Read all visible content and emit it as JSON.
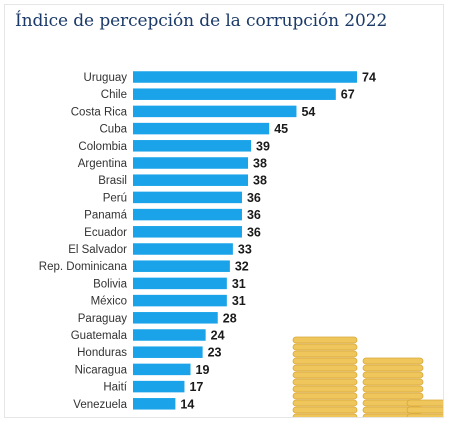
{
  "colors": {
    "bar": "#1aa3e8",
    "title": "#1b3a68",
    "coin": "#eec65c",
    "coin_edge": "#d9a83a"
  },
  "coins_icon": "coin-stacks-illustration",
  "chart_data": {
    "type": "bar",
    "orientation": "horizontal",
    "title": "Índice de percepción de la corrupción 2022",
    "xlabel": "",
    "ylabel": "",
    "xlim": [
      0,
      74
    ],
    "grid": false,
    "legend": "none",
    "categories": [
      "Uruguay",
      "Chile",
      "Costa Rica",
      "Cuba",
      "Colombia",
      "Argentina",
      "Brasil",
      "Perú",
      "Panamá",
      "Ecuador",
      "El Salvador",
      "Rep. Dominicana",
      "Bolivia",
      "México",
      "Paraguay",
      "Guatemala",
      "Honduras",
      "Nicaragua",
      "Haití",
      "Venezuela"
    ],
    "values": [
      74,
      67,
      54,
      45,
      39,
      38,
      38,
      36,
      36,
      36,
      33,
      32,
      31,
      31,
      28,
      24,
      23,
      19,
      17,
      14
    ]
  }
}
